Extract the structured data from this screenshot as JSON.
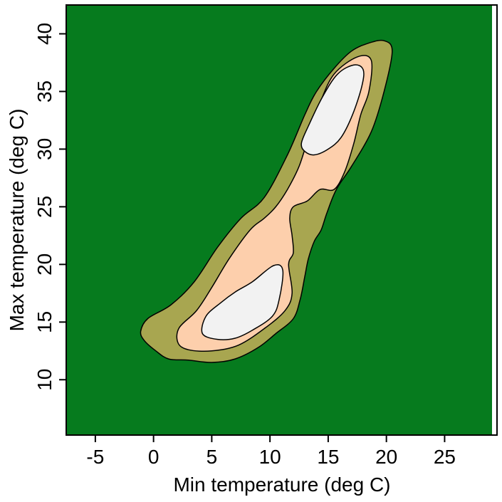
{
  "chart_data": {
    "type": "filled-contour",
    "title": "",
    "xlabel": "Min temperature (deg C)",
    "ylabel": "Max temperature (deg C)",
    "xlim": [
      -7.5,
      29.5
    ],
    "ylim": [
      5.2,
      42.5
    ],
    "xticks": [
      -5,
      0,
      5,
      10,
      15,
      20,
      25
    ],
    "yticks": [
      10,
      15,
      20,
      25,
      30,
      35,
      40
    ],
    "grid": false,
    "colors": {
      "background_level": "#067b1e",
      "level_1": "#a8a650",
      "level_2": "#fdcfac",
      "level_3": "#f2f2f2",
      "outline": "#000000"
    },
    "levels": [
      {
        "name": "level_1",
        "color": "#a8a650",
        "regions": [
          [
            [
              -1.1,
              14.2
            ],
            [
              -0.5,
              15.3
            ],
            [
              1.5,
              16.5
            ],
            [
              3.5,
              18.5
            ],
            [
              5.5,
              21.5
            ],
            [
              7.5,
              24.0
            ],
            [
              9.5,
              25.8
            ],
            [
              11.5,
              29.5
            ],
            [
              13.0,
              33.0
            ],
            [
              14.0,
              35.0
            ],
            [
              15.5,
              37.0
            ],
            [
              17.0,
              38.5
            ],
            [
              18.5,
              39.2
            ],
            [
              19.8,
              39.4
            ],
            [
              20.5,
              38.5
            ],
            [
              19.8,
              35.0
            ],
            [
              18.7,
              31.5
            ],
            [
              17.0,
              28.5
            ],
            [
              15.7,
              26.5
            ],
            [
              14.9,
              24.5
            ],
            [
              14.4,
              23.0
            ],
            [
              13.8,
              22.0
            ],
            [
              13.3,
              20.5
            ],
            [
              13.0,
              19.0
            ],
            [
              12.6,
              17.0
            ],
            [
              12.0,
              15.3
            ],
            [
              10.5,
              14.0
            ],
            [
              9.0,
              12.8
            ],
            [
              7.0,
              11.8
            ],
            [
              5.0,
              11.5
            ],
            [
              3.0,
              11.7
            ],
            [
              1.3,
              11.8
            ],
            [
              0.2,
              12.5
            ],
            [
              -0.8,
              13.4
            ]
          ]
        ]
      },
      {
        "name": "level_2",
        "color": "#fdcfac",
        "regions": [
          [
            [
              2.1,
              13.2
            ],
            [
              2.2,
              14.5
            ],
            [
              3.7,
              16.0
            ],
            [
              5.0,
              18.0
            ],
            [
              6.5,
              20.5
            ],
            [
              8.3,
              23.0
            ],
            [
              9.5,
              24.0
            ],
            [
              10.5,
              25.0
            ],
            [
              11.5,
              26.5
            ],
            [
              12.5,
              28.5
            ],
            [
              13.3,
              31.0
            ],
            [
              14.3,
              34.0
            ],
            [
              15.5,
              36.5
            ],
            [
              17.5,
              38.0
            ],
            [
              18.7,
              37.7
            ],
            [
              18.5,
              35.0
            ],
            [
              17.8,
              33.0
            ],
            [
              17.2,
              30.5
            ],
            [
              16.4,
              28.0
            ],
            [
              15.5,
              26.5
            ],
            [
              14.3,
              26.5
            ],
            [
              13.2,
              25.5
            ],
            [
              12.0,
              25.0
            ],
            [
              11.7,
              24.0
            ],
            [
              11.9,
              22.5
            ],
            [
              12.0,
              21.0
            ],
            [
              11.6,
              20.0
            ],
            [
              11.9,
              17.5
            ],
            [
              11.3,
              16.0
            ],
            [
              9.6,
              14.5
            ],
            [
              7.3,
              13.0
            ],
            [
              5.0,
              12.5
            ],
            [
              3.0,
              12.6
            ]
          ]
        ]
      },
      {
        "name": "level_3",
        "color": "#f2f2f2",
        "regions": [
          [
            [
              4.2,
              14.0
            ],
            [
              4.5,
              15.5
            ],
            [
              5.8,
              16.7
            ],
            [
              7.0,
              17.6
            ],
            [
              8.5,
              18.5
            ],
            [
              10.3,
              19.9
            ],
            [
              11.1,
              19.5
            ],
            [
              10.8,
              17.0
            ],
            [
              10.2,
              15.5
            ],
            [
              8.5,
              14.3
            ],
            [
              7.0,
              13.6
            ],
            [
              5.5,
              13.5
            ]
          ],
          [
            [
              12.7,
              30.5
            ],
            [
              13.3,
              32.0
            ],
            [
              14.5,
              34.5
            ],
            [
              15.8,
              36.5
            ],
            [
              17.2,
              37.3
            ],
            [
              18.0,
              36.9
            ],
            [
              17.9,
              35.5
            ],
            [
              17.1,
              33.0
            ],
            [
              16.1,
              31.0
            ],
            [
              15.0,
              30.0
            ],
            [
              13.8,
              29.5
            ],
            [
              13.0,
              29.8
            ]
          ]
        ]
      }
    ]
  }
}
